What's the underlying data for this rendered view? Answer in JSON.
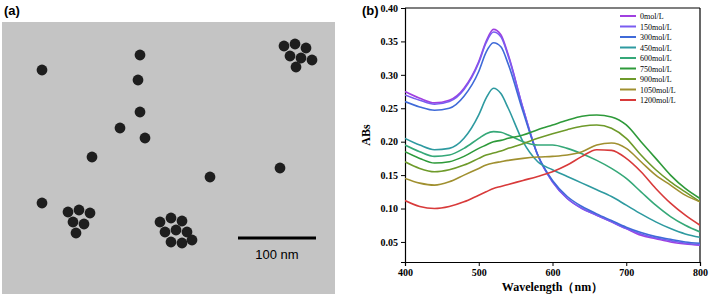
{
  "image_panel": {
    "label": "(a)",
    "scale_bar": "100 nm"
  },
  "chart_data": {
    "type": "line",
    "title": "(b)",
    "x_label": "Wavelength（nm）",
    "y_label": "ABs",
    "x": [
      400,
      420,
      440,
      460,
      480,
      500,
      510,
      520,
      530,
      540,
      560,
      580,
      600,
      620,
      640,
      660,
      680,
      700,
      720,
      740,
      760,
      780,
      800
    ],
    "xlim": [
      400,
      800
    ],
    "xticks": [
      400,
      500,
      600,
      700,
      800
    ],
    "ylim": [
      0.02,
      0.4
    ],
    "yticks": [
      0.05,
      {
        "value": 0.1,
        "label": "0.10"
      },
      0.15,
      {
        "value": 0.2,
        "label": "0.20"
      },
      0.25,
      {
        "value": 0.3,
        "label": "0.30"
      },
      0.35,
      {
        "value": 0.4,
        "label": "0.40"
      }
    ],
    "grid": false,
    "legend": "upper right",
    "series": [
      {
        "name": "0mol/L",
        "color": "#a040e0",
        "values": [
          0.275,
          0.265,
          0.258,
          0.262,
          0.28,
          0.32,
          0.35,
          0.368,
          0.36,
          0.33,
          0.25,
          0.18,
          0.14,
          0.115,
          0.1,
          0.09,
          0.08,
          0.07,
          0.06,
          0.055,
          0.05,
          0.047,
          0.045
        ]
      },
      {
        "name": "150mol/L",
        "color": "#7a5cf0",
        "values": [
          0.27,
          0.262,
          0.256,
          0.26,
          0.278,
          0.318,
          0.348,
          0.364,
          0.357,
          0.328,
          0.25,
          0.18,
          0.14,
          0.115,
          0.1,
          0.09,
          0.08,
          0.07,
          0.062,
          0.056,
          0.052,
          0.048,
          0.046
        ]
      },
      {
        "name": "300mol/L",
        "color": "#3f6ad8",
        "values": [
          0.26,
          0.252,
          0.247,
          0.25,
          0.268,
          0.305,
          0.334,
          0.348,
          0.342,
          0.316,
          0.245,
          0.18,
          0.142,
          0.118,
          0.103,
          0.092,
          0.082,
          0.072,
          0.064,
          0.058,
          0.054,
          0.05,
          0.048
        ]
      },
      {
        "name": "450mol/L",
        "color": "#2e9aa0",
        "values": [
          0.205,
          0.195,
          0.188,
          0.19,
          0.205,
          0.24,
          0.265,
          0.28,
          0.272,
          0.25,
          0.2,
          0.17,
          0.158,
          0.148,
          0.138,
          0.128,
          0.118,
          0.105,
          0.092,
          0.08,
          0.07,
          0.062,
          0.057
        ]
      },
      {
        "name": "600mol/L",
        "color": "#35a878",
        "values": [
          0.195,
          0.185,
          0.178,
          0.18,
          0.19,
          0.205,
          0.212,
          0.215,
          0.214,
          0.21,
          0.2,
          0.195,
          0.195,
          0.19,
          0.182,
          0.172,
          0.16,
          0.145,
          0.125,
          0.105,
          0.088,
          0.075,
          0.065
        ]
      },
      {
        "name": "750mol/L",
        "color": "#2e9a3a",
        "values": [
          0.185,
          0.175,
          0.168,
          0.17,
          0.178,
          0.19,
          0.195,
          0.2,
          0.202,
          0.205,
          0.21,
          0.218,
          0.225,
          0.232,
          0.238,
          0.24,
          0.237,
          0.225,
          0.2,
          0.175,
          0.15,
          0.13,
          0.115
        ]
      },
      {
        "name": "900mol/L",
        "color": "#6e9a2a",
        "values": [
          0.17,
          0.16,
          0.155,
          0.158,
          0.165,
          0.175,
          0.18,
          0.183,
          0.186,
          0.19,
          0.197,
          0.205,
          0.212,
          0.218,
          0.223,
          0.225,
          0.22,
          0.205,
          0.18,
          0.158,
          0.14,
          0.125,
          0.11
        ]
      },
      {
        "name": "1050mol/L",
        "color": "#a09030",
        "values": [
          0.145,
          0.138,
          0.135,
          0.14,
          0.15,
          0.16,
          0.165,
          0.168,
          0.17,
          0.172,
          0.175,
          0.177,
          0.178,
          0.18,
          0.185,
          0.195,
          0.198,
          0.19,
          0.17,
          0.15,
          0.135,
          0.12,
          0.11
        ]
      },
      {
        "name": "1200mol/L",
        "color": "#d83a3a",
        "values": [
          0.112,
          0.103,
          0.1,
          0.103,
          0.11,
          0.12,
          0.125,
          0.13,
          0.133,
          0.136,
          0.142,
          0.148,
          0.155,
          0.165,
          0.178,
          0.188,
          0.187,
          0.175,
          0.155,
          0.13,
          0.108,
          0.09,
          0.075
        ]
      }
    ]
  }
}
